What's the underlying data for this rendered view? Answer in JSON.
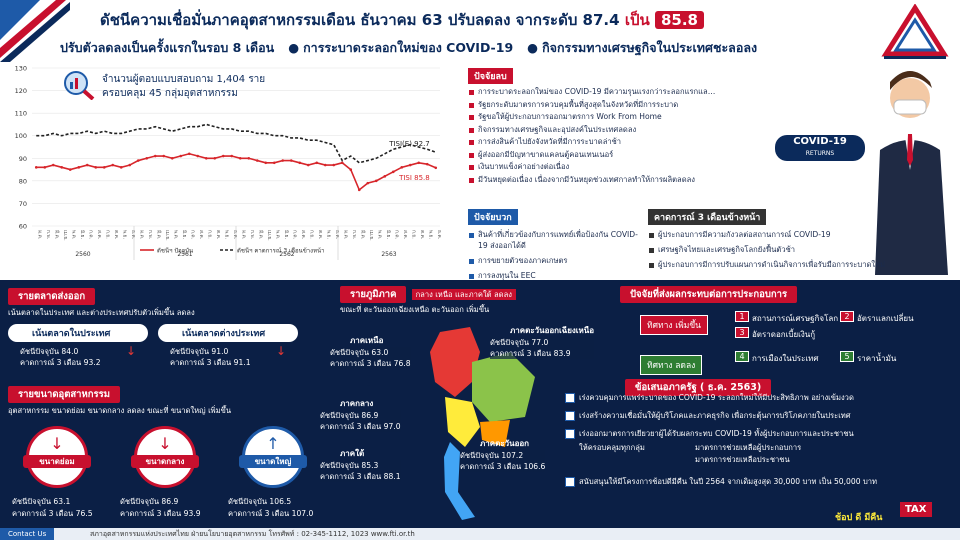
{
  "header": {
    "line1_prefix": "ดัชนีความเชื่อมั่นภาคอุตสาหกรรมเดือน ธันวาคม 63 ปรับลดลง  จากระดับ 87.4",
    "line1_mid": "เป็น",
    "line1_value": "85.8",
    "line2": "ปรับตัวลดลงเป็นครั้งแรกในรอบ 8 เดือน",
    "line2_bullets": [
      "การระบาดระลอกใหม่ของ COVID-19",
      "กิจกรรมทางเศรษฐกิจในประเทศชะลอลง"
    ]
  },
  "survey": {
    "line1": "จำนวนผู้ตอบแบบสอบถาม 1,404 ราย",
    "line2": "ครอบคลุม 45 กลุ่มอุตสาหกรรม"
  },
  "chart_data": {
    "type": "line",
    "categories": [
      "ม.ค.",
      "ก.พ.",
      "มี.ค.",
      "เม.ย.",
      "พ.ค.",
      "มิ.ย.",
      "ก.ค.",
      "ส.ค.",
      "ก.ย.",
      "ต.ค.",
      "พ.ย.",
      "ธ.ค.",
      "ม.ค.",
      "ก.พ.",
      "มี.ค.",
      "เม.ย.",
      "พ.ค.",
      "มิ.ย.",
      "ก.ค.",
      "ส.ค.",
      "ก.ย.",
      "ต.ค.",
      "พ.ย.",
      "ธ.ค.",
      "ม.ค.",
      "ก.พ.",
      "มี.ค.",
      "เม.ย.",
      "พ.ค.",
      "มิ.ย.",
      "ก.ค.",
      "ส.ค.",
      "ก.ย.",
      "ต.ค.",
      "พ.ย.",
      "ธ.ค.",
      "ม.ค.",
      "ก.พ.",
      "มี.ค.",
      "เม.ย.",
      "พ.ค.",
      "มิ.ย.",
      "ก.ค.",
      "ส.ค.",
      "ก.ย.",
      "ต.ค.",
      "พ.ย.",
      "ธ.ค."
    ],
    "x_groups": [
      "2560",
      "2561",
      "2562",
      "2563"
    ],
    "series": [
      {
        "name": "ดัชนีฯ ปัจจุบัน",
        "color": "#d7262b",
        "dash": false,
        "values": [
          86,
          86,
          87,
          86,
          85,
          86,
          87,
          86,
          86,
          87,
          86,
          87,
          89,
          90,
          91,
          91,
          90,
          91,
          92,
          91,
          90,
          90,
          91,
          91,
          90,
          90,
          89,
          88,
          88,
          89,
          89,
          88,
          87,
          88,
          87,
          87,
          88,
          85,
          76,
          79,
          80,
          82,
          84,
          86,
          87,
          88,
          87.4,
          85.8
        ],
        "end_label": "TISI 85.8"
      },
      {
        "name": "ดัชนีฯ คาดการณ์ 3 เดือนข้างหน้า",
        "color": "#222222",
        "dash": true,
        "values": [
          100,
          100,
          101,
          100,
          101,
          101,
          102,
          101,
          102,
          101,
          101,
          102,
          103,
          103,
          104,
          103,
          102,
          103,
          104,
          104,
          105,
          104,
          103,
          103,
          102,
          102,
          101,
          101,
          100,
          100,
          99,
          99,
          98,
          98,
          97,
          96,
          89,
          91,
          88,
          89,
          90,
          92,
          94,
          95,
          96,
          95,
          94,
          92.7
        ],
        "end_label": "TISI(E) 92.7"
      }
    ],
    "ylim": [
      60,
      130
    ],
    "yticks": [
      60,
      70,
      80,
      90,
      100,
      110,
      120,
      130
    ],
    "grid": true
  },
  "negative": {
    "title": "ปัจจัยลบ",
    "items": [
      "การระบาดระลอกใหม่ของ COVID-19 มีความรุนแรงกว่าระลอกแรกและขยายวงกว้าง",
      "รัฐยกระดับมาตรการควบคุมพื้นที่สูงสุดในจังหวัดที่มีการระบาด",
      "รัฐขอให้ผู้ประกอบการออกมาตรการ Work From Home",
      "กิจกรรมทางเศรษฐกิจและอุปสงค์ในประเทศลดลง",
      "การส่งสินค้าไปยังจังหวัดที่มีการระบาดล่าช้า",
      "ผู้ส่งออกมีปัญหาขาดแคลนตู้คอนเทนเนอร์",
      "เงินบาทแข็งค่าอย่างต่อเนื่อง",
      "มีวันหยุดต่อเนื่อง เนื่องจากมีวันหยุดช่วงเทศกาลทำให้การผลิตลดลง"
    ]
  },
  "badge": {
    "title": "COVID-19",
    "sub": "RETURNS"
  },
  "positive": {
    "title": "ปัจจัยบวก",
    "items": [
      "สินค้าที่เกี่ยวข้องกับการแพทย์เพื่อป้องกัน COVID-19 ส่งออกได้ดี",
      "การขยายตัวของภาคเกษตร",
      "การลงทุนใน EEC"
    ]
  },
  "forecast": {
    "title": "คาดการณ์ 3 เดือนข้างหน้า",
    "items": [
      "ผู้ประกอบการมีความกังวลต่อสถานการณ์ COVID-19",
      "เศรษฐกิจไทยและเศรษฐกิจโลกยังฟื้นตัวช้า",
      "ผู้ประกอบการมีการปรับแผนการดำเนินกิจการเพื่อรับมือการระบาดใหม่"
    ]
  },
  "market": {
    "title": "รายตลาดส่งออก",
    "subtitle": "เน้นตลาดในประเทศ และต่างประเทศปรับตัวเพิ่มขึ้น ลดลง",
    "cards": [
      {
        "name": "เน้นตลาดในประเทศ",
        "current": "ดัชนีปัจจุบัน 84.0",
        "forecast": "คาดการณ์ 3 เดือน 93.2"
      },
      {
        "name": "เน้นตลาดต่างประเทศ",
        "current": "ดัชนีปัจจุบัน 91.0",
        "forecast": "คาดการณ์ 3 เดือน 91.1"
      }
    ]
  },
  "size": {
    "title": "รายขนาดอุตสาหกรรม",
    "subtitle": "อุตสาหกรรม ขนาดย่อม ขนาดกลาง ลดลง ขณะที่ ขนาดใหญ่ เพิ่มขึ้น",
    "cards": [
      {
        "name": "ขนาดย่อม",
        "current": "ดัชนีปัจจุบัน  63.1",
        "forecast": "คาดการณ์ 3 เดือน  76.5"
      },
      {
        "name": "ขนาดกลาง",
        "current": "ดัชนีปัจจุบัน  86.9",
        "forecast": "คาดการณ์ 3 เดือน  93.9"
      },
      {
        "name": "ขนาดใหญ่",
        "current": "ดัชนีปัจจุบัน  106.5",
        "forecast": "คาดการณ์ 3 เดือน  107.0"
      }
    ]
  },
  "region": {
    "title": "รายภูมิภาค",
    "subtitle1": "กลาง เหนือ และภาคใต้ ลดลง",
    "subtitle2": "ขณะที่ ตะวันออกเฉียงเหนือ ตะวันออก เพิ่มขึ้น",
    "regions": [
      {
        "name": "ภาคเหนือ",
        "current": "ดัชนีปัจจุบัน 63.0",
        "forecast": "คาดการณ์ 3 เดือน 76.8"
      },
      {
        "name": "ภาคกลาง",
        "current": "ดัชนีปัจจุบัน 86.9",
        "forecast": "คาดการณ์ 3 เดือน 97.0"
      },
      {
        "name": "ภาคใต้",
        "current": "ดัชนีปัจจุบัน 85.3",
        "forecast": "คาดการณ์ 3 เดือน 88.1"
      },
      {
        "name": "ภาคตะวันออกเฉียงเหนือ",
        "current": "ดัชนีปัจจุบัน 77.0",
        "forecast": "คาดการณ์ 3 เดือน 83.9"
      },
      {
        "name": "ภาคตะวันออก",
        "current": "ดัชนีปัจจุบัน 107.2",
        "forecast": "คาดการณ์ 3 เดือน 106.6"
      }
    ]
  },
  "impact": {
    "title": "ปัจจัยที่ส่งผลกระทบต่อการประกอบการ",
    "groups": [
      {
        "direction": "ทิศทาง เพิ่มขึ้น",
        "items": [
          {
            "no": "1",
            "text": "สถานการณ์เศรษฐกิจโลก"
          },
          {
            "no": "2",
            "text": "อัตราแลกเปลี่ยน"
          },
          {
            "no": "3",
            "text": "อัตราดอกเบี้ยเงินกู้"
          }
        ]
      },
      {
        "direction": "ทิศทาง ลดลง",
        "items": [
          {
            "no": "4",
            "text": "การเมืองในประเทศ"
          },
          {
            "no": "5",
            "text": "ราคาน้ำมัน"
          }
        ]
      }
    ]
  },
  "proposal": {
    "title": "ข้อเสนอภาครัฐ ( ธ.ค. 2563)",
    "items": [
      "เร่งควบคุมการแพร่ระบาดของ COVID-19 ระลอกใหม่ให้มีประสิทธิภาพ อย่างเข้มงวด",
      "เร่งสร้างความเชื่อมั่นให้ผู้บริโภคและภาคธุรกิจ เพื่อกระตุ้นการบริโภคภายในประเทศ",
      "เร่งออกมาตรการเยียวยาผู้ได้รับผลกระทบ COVID-19 ทั้งผู้ประกอบการและประชาชน",
      "สนับสนุนให้มีโครงการช้อปดีมีคืน ในปี 2564 จากเดิมสูงสุด 30,000 บาท เป็น 50,000 บาท"
    ],
    "sub_lead": "ให้ครอบคลุมทุกกลุ่ม",
    "sub_items": [
      "มาตรการช่วยเหลือผู้ประกอบการ",
      "มาตรการช่วยเหลือประชาชน"
    ],
    "tag": "ช้อป ดี มีคืน",
    "tax": "TAX"
  },
  "footer": {
    "contact": "Contact Us",
    "text": "สภาอุตสาหกรรมแห่งประเทศไทย  ฝ่ายนโยบายอุตสาหกรรม  โทรศัพท์ : 02-345-1112, 1023  www.fti.or.th"
  }
}
